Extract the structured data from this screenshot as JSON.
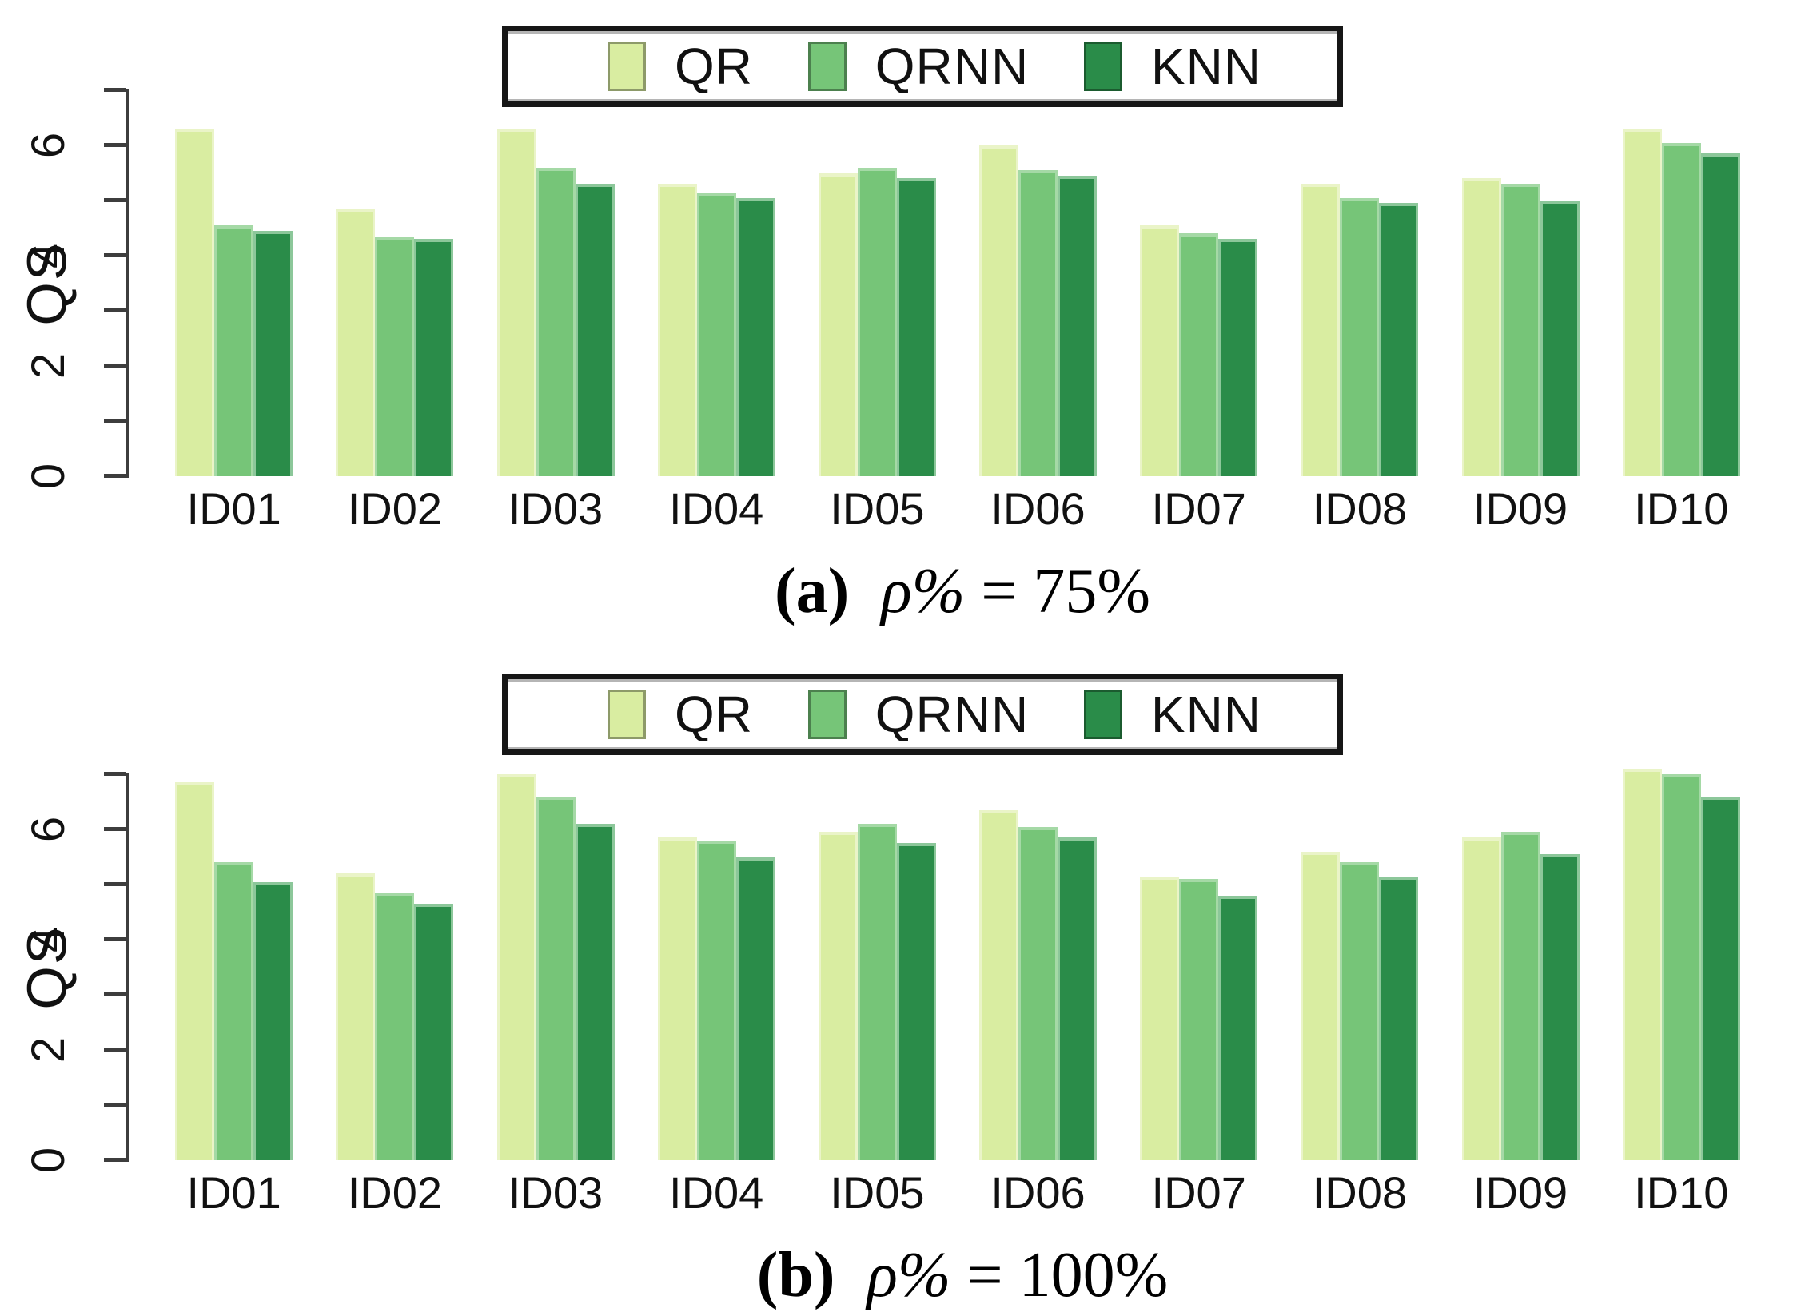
{
  "legend": {
    "items": [
      {
        "label": "QR"
      },
      {
        "label": "QRNN"
      },
      {
        "label": "KNN"
      }
    ]
  },
  "chart_data": [
    {
      "type": "bar",
      "panel_id": "a",
      "title": "",
      "caption": {
        "label": "(a)",
        "rho": "ρ%",
        "value": " = 75%"
      },
      "ylabel": "QS",
      "xlabel": "",
      "ylim": [
        0,
        7
      ],
      "yticks_all": [
        0,
        1,
        2,
        3,
        4,
        5,
        6,
        7
      ],
      "yticks_labeled": [
        "0",
        "2",
        "4",
        "6"
      ],
      "grid": false,
      "legend_position": "top-center",
      "categories": [
        "ID01",
        "ID02",
        "ID03",
        "ID04",
        "ID05",
        "ID06",
        "ID07",
        "ID08",
        "ID09",
        "ID10"
      ],
      "series": [
        {
          "name": "QR",
          "color": "#d9eda1",
          "edge": "#eaf4c8",
          "values": [
            6.3,
            4.85,
            6.3,
            5.3,
            5.5,
            6.0,
            4.55,
            5.3,
            5.4,
            6.3
          ]
        },
        {
          "name": "QRNN",
          "color": "#76c578",
          "edge": "#a5d9a6",
          "values": [
            4.55,
            4.35,
            5.6,
            5.15,
            5.6,
            5.55,
            4.4,
            5.05,
            5.3,
            6.05
          ]
        },
        {
          "name": "KNN",
          "color": "#2a8c49",
          "edge": "#8cc79a",
          "values": [
            4.45,
            4.3,
            5.3,
            5.05,
            5.4,
            5.45,
            4.3,
            4.95,
            5.0,
            5.85
          ]
        }
      ]
    },
    {
      "type": "bar",
      "panel_id": "b",
      "title": "",
      "caption": {
        "label": "(b)",
        "rho": "ρ%",
        "value": " = 100%"
      },
      "ylabel": "QS",
      "xlabel": "",
      "ylim": [
        0,
        7
      ],
      "yticks_all": [
        0,
        1,
        2,
        3,
        4,
        5,
        6,
        7
      ],
      "yticks_labeled": [
        "0",
        "2",
        "4",
        "6"
      ],
      "grid": false,
      "legend_position": "top-center",
      "categories": [
        "ID01",
        "ID02",
        "ID03",
        "ID04",
        "ID05",
        "ID06",
        "ID07",
        "ID08",
        "ID09",
        "ID10"
      ],
      "series": [
        {
          "name": "QR",
          "color": "#d9eda1",
          "edge": "#eaf4c8",
          "values": [
            6.85,
            5.2,
            7.0,
            5.85,
            5.95,
            6.35,
            5.15,
            5.6,
            5.85,
            7.1
          ]
        },
        {
          "name": "QRNN",
          "color": "#76c578",
          "edge": "#a5d9a6",
          "values": [
            5.4,
            4.85,
            6.6,
            5.8,
            6.1,
            6.05,
            5.1,
            5.4,
            5.95,
            7.0
          ]
        },
        {
          "name": "KNN",
          "color": "#2a8c49",
          "edge": "#8cc79a",
          "values": [
            5.05,
            4.65,
            6.1,
            5.5,
            5.75,
            5.85,
            4.8,
            5.15,
            5.55,
            6.6
          ]
        }
      ]
    }
  ]
}
